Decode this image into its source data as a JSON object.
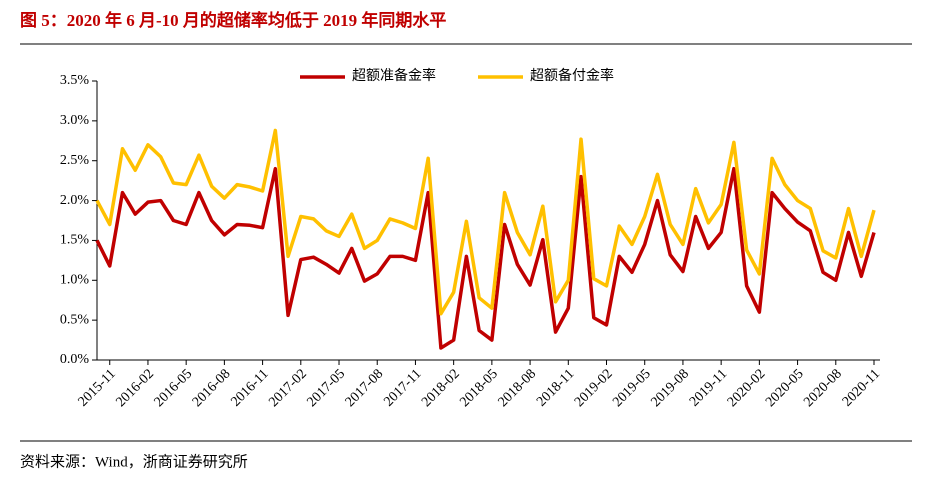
{
  "title": "图 5：2020 年 6 月-10 月的超储率均低于 2019 年同期水平",
  "source": "资料来源：Wind，浙商证券研究所",
  "chart_data": {
    "type": "line",
    "categories": [
      null,
      "2015-11",
      null,
      null,
      "2016-02",
      null,
      null,
      "2016-05",
      null,
      null,
      "2016-08",
      null,
      null,
      "2016-11",
      null,
      null,
      "2017-02",
      null,
      null,
      "2017-05",
      null,
      null,
      "2017-08",
      null,
      null,
      "2017-11",
      null,
      null,
      "2018-02",
      null,
      null,
      "2018-05",
      null,
      null,
      "2018-08",
      null,
      null,
      "2018-11",
      null,
      null,
      "2019-02",
      null,
      null,
      "2019-05",
      null,
      null,
      "2019-08",
      null,
      null,
      "2019-11",
      null,
      null,
      "2020-02",
      null,
      null,
      "2020-05",
      null,
      null,
      "2020-08",
      null,
      null,
      "2020-11"
    ],
    "series": [
      {
        "name": "超额准备金率",
        "color": "#c00000",
        "values": [
          1.5,
          1.18,
          2.1,
          1.83,
          1.98,
          2.0,
          1.75,
          1.7,
          2.1,
          1.75,
          1.57,
          1.7,
          1.69,
          1.66,
          2.4,
          0.56,
          1.26,
          1.29,
          1.2,
          1.09,
          1.4,
          0.99,
          1.08,
          1.3,
          1.3,
          1.25,
          2.1,
          0.15,
          0.25,
          1.3,
          0.37,
          0.25,
          1.7,
          1.2,
          0.94,
          1.51,
          0.35,
          0.65,
          2.3,
          0.53,
          0.44,
          1.3,
          1.1,
          1.45,
          2.0,
          1.32,
          1.11,
          1.8,
          1.4,
          1.6,
          2.4,
          0.93,
          0.6,
          2.1,
          1.9,
          1.73,
          1.62,
          1.1,
          1.0,
          1.6,
          1.05,
          1.6
        ]
      },
      {
        "name": "超额备付金率",
        "color": "#ffc000",
        "values": [
          2.0,
          1.7,
          2.65,
          2.38,
          2.7,
          2.55,
          2.22,
          2.2,
          2.57,
          2.18,
          2.03,
          2.2,
          2.17,
          2.12,
          2.88,
          1.3,
          1.8,
          1.77,
          1.62,
          1.55,
          1.83,
          1.4,
          1.5,
          1.77,
          1.72,
          1.65,
          2.53,
          0.58,
          0.85,
          1.74,
          0.78,
          0.65,
          2.1,
          1.6,
          1.32,
          1.93,
          0.73,
          1.0,
          2.77,
          1.02,
          0.93,
          1.68,
          1.45,
          1.8,
          2.33,
          1.7,
          1.45,
          2.15,
          1.72,
          1.95,
          2.73,
          1.38,
          1.08,
          2.53,
          2.2,
          2.0,
          1.9,
          1.37,
          1.28,
          1.9,
          1.3,
          1.88
        ]
      }
    ],
    "ylim": [
      0,
      3.5
    ],
    "yticks": [
      {
        "value": 0,
        "label": "0.0%"
      },
      {
        "value": 0.5,
        "label": "0.5%"
      },
      {
        "value": 1,
        "label": "1.0%"
      },
      {
        "value": 1.5,
        "label": "1.5%"
      },
      {
        "value": 2,
        "label": "2.0%"
      },
      {
        "value": 2.5,
        "label": "2.5%"
      },
      {
        "value": 3,
        "label": "3.0%"
      },
      {
        "value": 3.5,
        "label": "3.5%"
      }
    ],
    "legend": "top"
  }
}
